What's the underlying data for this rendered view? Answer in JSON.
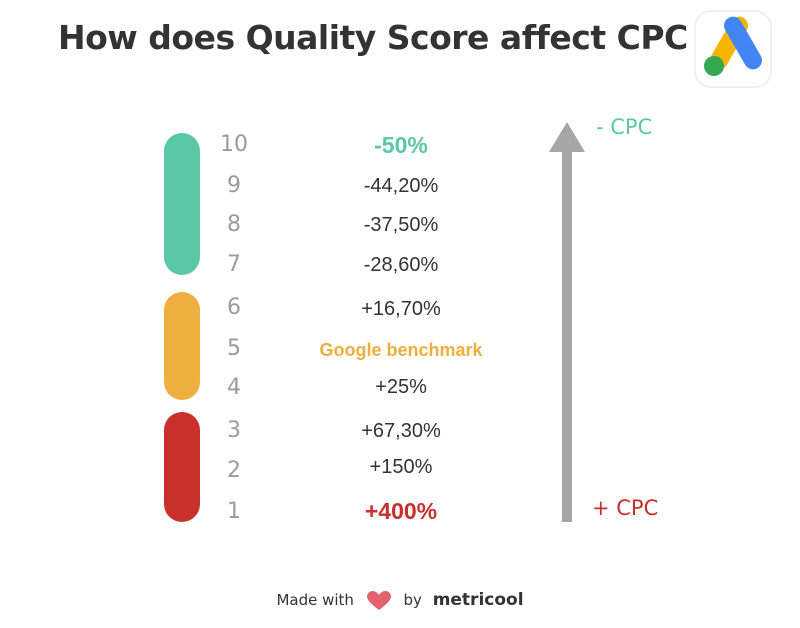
{
  "title": "How does Quality Score affect CPC",
  "logo_icon": "google-ads-logo",
  "colors": {
    "green": "#5bc8a5",
    "orange": "#efae40",
    "red": "#c9302c",
    "arrow": "#a6a6a6",
    "text": "#333333",
    "score_text": "#9b9b9b"
  },
  "rows": [
    {
      "score": "10",
      "value": "-50%"
    },
    {
      "score": "9",
      "value": "-44,20%"
    },
    {
      "score": "8",
      "value": "-37,50%"
    },
    {
      "score": "7",
      "value": "-28,60%"
    },
    {
      "score": "6",
      "value": "+16,70%"
    },
    {
      "score": "5",
      "value": "Google benchmark"
    },
    {
      "score": "4",
      "value": "+25%"
    },
    {
      "score": "3",
      "value": "+67,30%"
    },
    {
      "score": "2",
      "value": "+150%"
    },
    {
      "score": "1",
      "value": "+400%"
    }
  ],
  "arrow": {
    "top_label": "- CPC",
    "bottom_label": "+ CPC"
  },
  "footer": {
    "made_with": "Made with",
    "heart_icon": "heart-icon",
    "by": "by",
    "brand": "metricool"
  }
}
